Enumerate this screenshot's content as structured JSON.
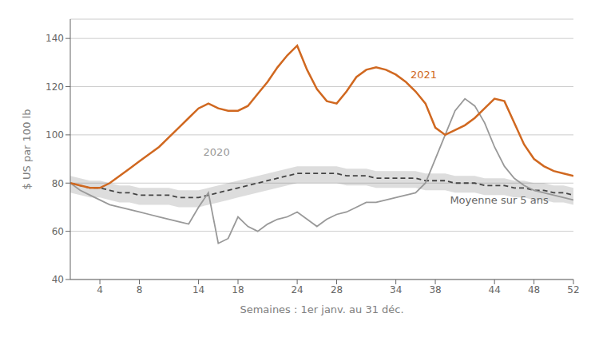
{
  "chart_data": {
    "type": "line",
    "xlabel": "Semaines : 1er janv. au 31 déc.",
    "ylabel": "$ US par 100 lb",
    "xlim": [
      1,
      52
    ],
    "ylim": [
      40,
      148
    ],
    "yticks": [
      40,
      60,
      80,
      100,
      120,
      140
    ],
    "xticks": [
      4,
      8,
      14,
      18,
      24,
      28,
      34,
      38,
      44,
      48,
      52
    ],
    "grid": "y",
    "x": [
      1,
      2,
      3,
      4,
      5,
      6,
      7,
      8,
      9,
      10,
      11,
      12,
      13,
      14,
      15,
      16,
      17,
      18,
      19,
      20,
      21,
      22,
      23,
      24,
      25,
      26,
      27,
      28,
      29,
      30,
      31,
      32,
      33,
      34,
      35,
      36,
      37,
      38,
      39,
      40,
      41,
      42,
      43,
      44,
      45,
      46,
      47,
      48,
      49,
      50,
      51,
      52
    ],
    "series": [
      {
        "type": "band",
        "color": "#777777",
        "lower": [
          76,
          75,
          74,
          74,
          73,
          72,
          72,
          71,
          71,
          71,
          71,
          70,
          70,
          70,
          71,
          72,
          73,
          74,
          75,
          76,
          77,
          78,
          79,
          80,
          80,
          80,
          80,
          80,
          79,
          79,
          79,
          78,
          78,
          78,
          78,
          78,
          77,
          77,
          77,
          76,
          76,
          76,
          75,
          75,
          75,
          74,
          74,
          73,
          73,
          72,
          72,
          71
        ],
        "upper": [
          83,
          82,
          81,
          81,
          80,
          79,
          79,
          78,
          78,
          78,
          78,
          77,
          77,
          77,
          78,
          79,
          80,
          81,
          82,
          83,
          84,
          85,
          86,
          87,
          87,
          87,
          87,
          87,
          86,
          86,
          86,
          85,
          85,
          85,
          85,
          85,
          84,
          84,
          84,
          83,
          83,
          83,
          82,
          82,
          82,
          81,
          81,
          80,
          80,
          79,
          79,
          78
        ]
      },
      {
        "type": "line",
        "name": "Moyenne sur 5 ans",
        "color": "#444444",
        "line_style": "dashed",
        "values": [
          80,
          79,
          78,
          78,
          77,
          76,
          76,
          75,
          75,
          75,
          75,
          74,
          74,
          74,
          75,
          76,
          77,
          78,
          79,
          80,
          81,
          82,
          83,
          84,
          84,
          84,
          84,
          84,
          83,
          83,
          83,
          82,
          82,
          82,
          82,
          82,
          81,
          81,
          81,
          80,
          80,
          80,
          79,
          79,
          79,
          78,
          78,
          77,
          77,
          76,
          76,
          75
        ]
      },
      {
        "type": "line",
        "name": "2020",
        "color": "#999999",
        "line_style": "solid",
        "values": [
          80,
          77,
          75,
          73,
          71,
          70,
          69,
          68,
          67,
          66,
          65,
          64,
          63,
          70,
          76,
          55,
          57,
          66,
          62,
          60,
          63,
          65,
          66,
          68,
          65,
          62,
          65,
          67,
          68,
          70,
          72,
          72,
          73,
          74,
          75,
          76,
          80,
          90,
          100,
          110,
          115,
          112,
          105,
          95,
          87,
          82,
          79,
          77,
          76,
          75,
          74,
          73
        ]
      },
      {
        "type": "line",
        "name": "2021",
        "color": "#d06820",
        "line_style": "solid",
        "values": [
          80,
          79,
          78,
          78,
          80,
          83,
          86,
          89,
          92,
          95,
          99,
          103,
          107,
          111,
          113,
          111,
          110,
          110,
          112,
          117,
          122,
          128,
          133,
          137,
          127,
          119,
          114,
          113,
          118,
          124,
          127,
          128,
          127,
          125,
          122,
          118,
          113,
          103,
          100,
          102,
          104,
          107,
          111,
          115,
          114,
          105,
          96,
          90,
          87,
          85,
          84,
          83
        ]
      }
    ],
    "annotations": [
      {
        "text": "2021",
        "x": 35,
        "y": 125,
        "color": "#d06820"
      },
      {
        "text": "2020",
        "x": 14,
        "y": 93,
        "color": "#999999"
      },
      {
        "text": "Moyenne sur 5 ans",
        "x": 39,
        "y": 73
      }
    ]
  }
}
